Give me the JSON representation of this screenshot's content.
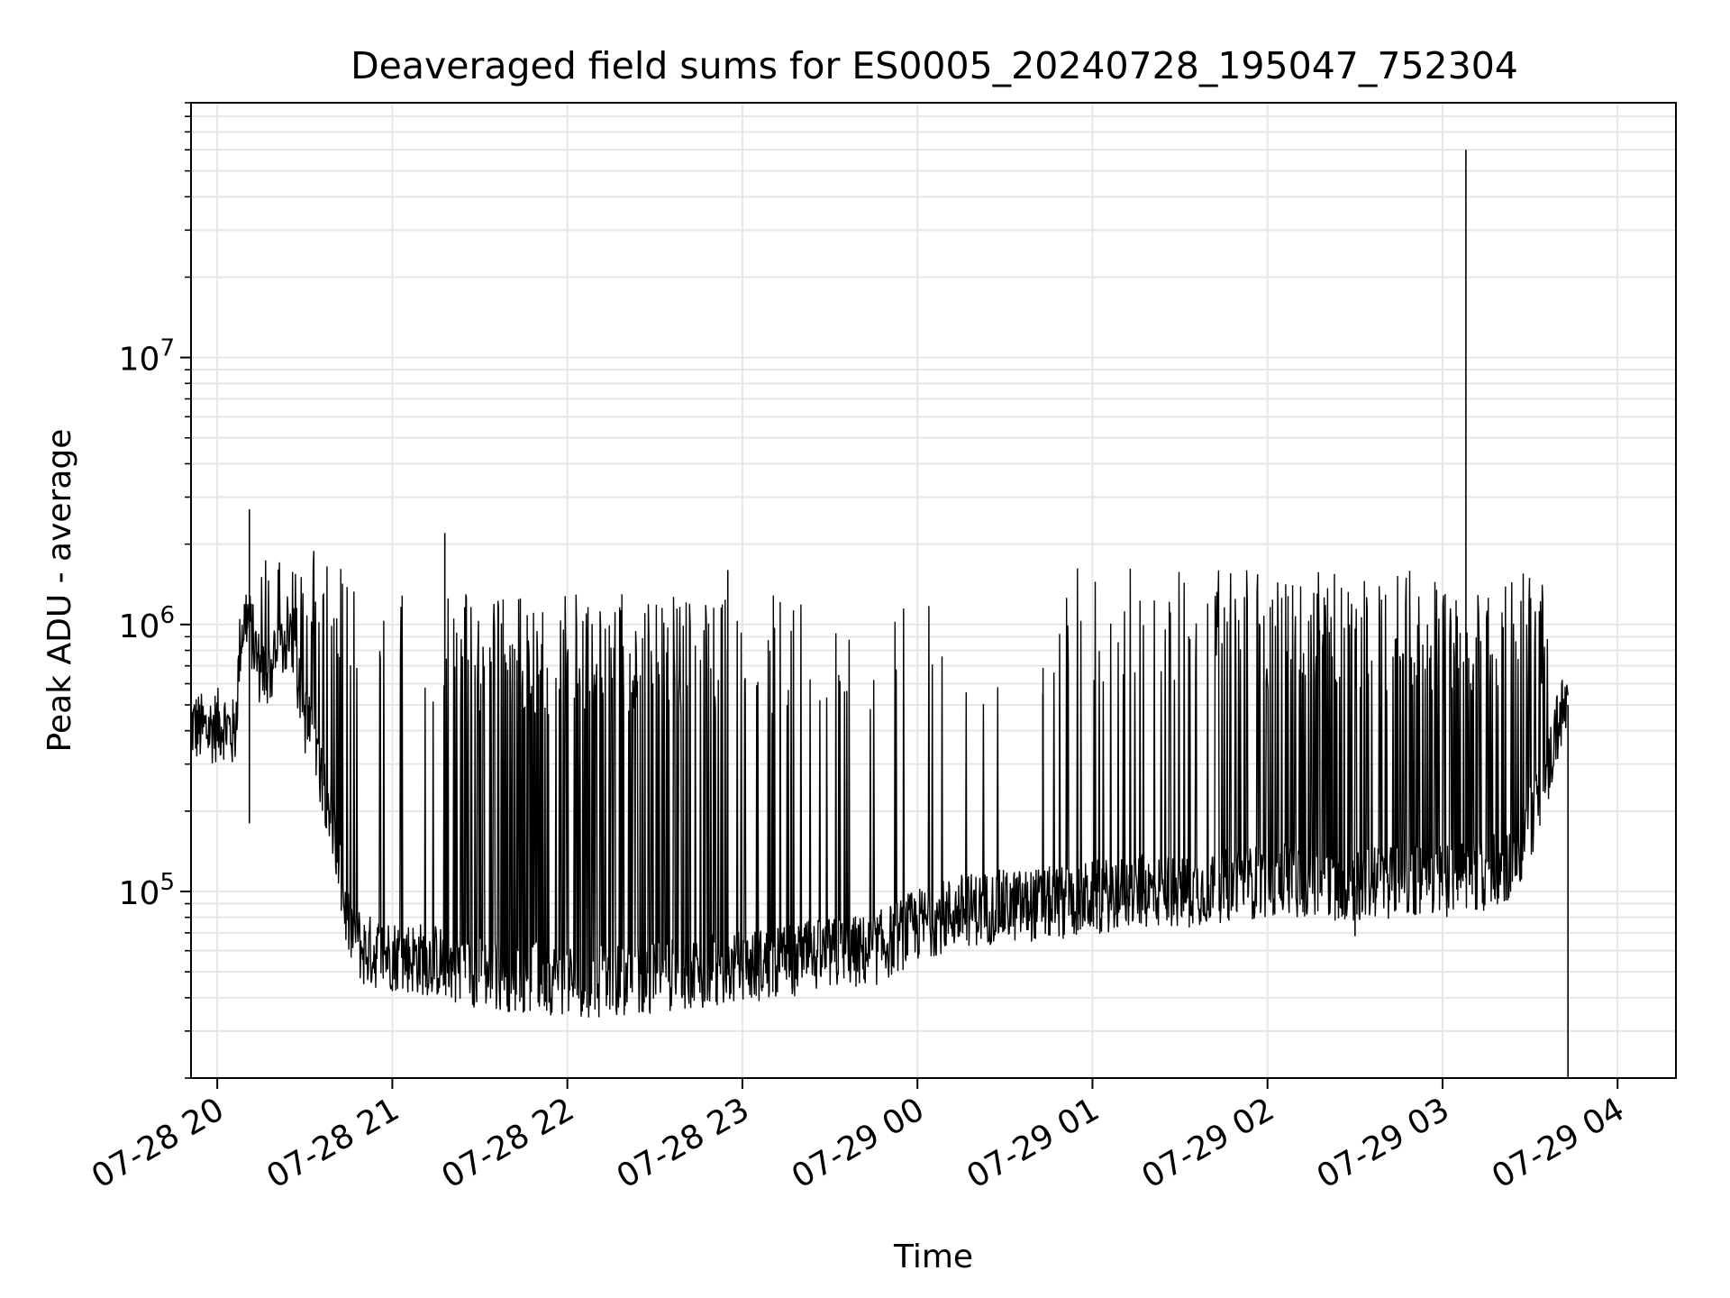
{
  "chart_data": {
    "type": "line",
    "title": "Deaveraged field sums for ES0005_20240728_195047_752304",
    "xlabel": "Time",
    "ylabel": "Peak ADU - average",
    "y_scale": "log",
    "xlim": [
      "2024-07-28 19:51",
      "2024-07-29 04:20"
    ],
    "ylim": [
      20000,
      90000000
    ],
    "grid": true,
    "line_color": "#000000",
    "grid_color": "#e6e6e6",
    "x_ticks": [
      {
        "value": "2024-07-28 20:00",
        "label": "07-28 20"
      },
      {
        "value": "2024-07-28 21:00",
        "label": "07-28 21"
      },
      {
        "value": "2024-07-28 22:00",
        "label": "07-28 22"
      },
      {
        "value": "2024-07-28 23:00",
        "label": "07-28 23"
      },
      {
        "value": "2024-07-29 00:00",
        "label": "07-29 00"
      },
      {
        "value": "2024-07-29 01:00",
        "label": "07-29 01"
      },
      {
        "value": "2024-07-29 02:00",
        "label": "07-29 02"
      },
      {
        "value": "2024-07-29 03:00",
        "label": "07-29 03"
      },
      {
        "value": "2024-07-29 04:00",
        "label": "07-29 04"
      }
    ],
    "y_ticks": [
      {
        "value": 100000,
        "base": "10",
        "exp": "5"
      },
      {
        "value": 1000000,
        "base": "10",
        "exp": "6"
      },
      {
        "value": 10000000,
        "base": "10",
        "exp": "7"
      }
    ],
    "series": [
      {
        "x": [
          "2024-07-28 19:51",
          "2024-07-28 19:56",
          "2024-07-28 20:02",
          "2024-07-28 20:06",
          "2024-07-28 20:08",
          "2024-07-28 20:10",
          "2024-07-28 20:12",
          "2024-07-28 20:15",
          "2024-07-28 20:20",
          "2024-07-28 20:25",
          "2024-07-28 20:30",
          "2024-07-28 20:35",
          "2024-07-28 20:40",
          "2024-07-28 20:42",
          "2024-07-28 20:45",
          "2024-07-28 20:50",
          "2024-07-28 21:00",
          "2024-07-28 21:15",
          "2024-07-28 21:30",
          "2024-07-28 21:45",
          "2024-07-28 22:00",
          "2024-07-28 22:15",
          "2024-07-28 22:30",
          "2024-07-28 22:45",
          "2024-07-28 23:00",
          "2024-07-28 23:15",
          "2024-07-28 23:30",
          "2024-07-28 23:45",
          "2024-07-29 00:00",
          "2024-07-29 00:15",
          "2024-07-29 00:30",
          "2024-07-29 00:45",
          "2024-07-29 01:00",
          "2024-07-29 01:15",
          "2024-07-29 01:30",
          "2024-07-29 01:45",
          "2024-07-29 02:00",
          "2024-07-29 02:15",
          "2024-07-29 02:30",
          "2024-07-29 02:45",
          "2024-07-29 03:00",
          "2024-07-29 03:15",
          "2024-07-29 03:25",
          "2024-07-29 03:35",
          "2024-07-29 03:40",
          "2024-07-29 03:43"
        ],
        "y": [
          420000,
          400000,
          430000,
          380000,
          900000,
          1100000,
          900000,
          650000,
          700000,
          1000000,
          450000,
          300000,
          180000,
          110000,
          75000,
          60000,
          58000,
          55000,
          50000,
          48000,
          47000,
          46000,
          48000,
          50000,
          52000,
          55000,
          58000,
          60000,
          75000,
          85000,
          88000,
          90000,
          95000,
          100000,
          100000,
          105000,
          110000,
          110000,
          105000,
          110000,
          110000,
          115000,
          130000,
          250000,
          450000,
          500000
        ],
        "spikes": [
          {
            "x": "2024-07-28 20:11",
            "y": 2700000
          },
          {
            "x": "2024-07-28 20:11",
            "y": 180000
          },
          {
            "x": "2024-07-28 21:18",
            "y": 2200000
          },
          {
            "x": "2024-07-28 22:55",
            "y": 1600000
          },
          {
            "x": "2024-07-29 00:43",
            "y": 550000
          },
          {
            "x": "2024-07-29 02:30",
            "y": 68000
          },
          {
            "x": "2024-07-29 03:08",
            "y": 60000000
          },
          {
            "x": "2024-07-29 03:43",
            "y": 20000
          }
        ]
      }
    ]
  }
}
